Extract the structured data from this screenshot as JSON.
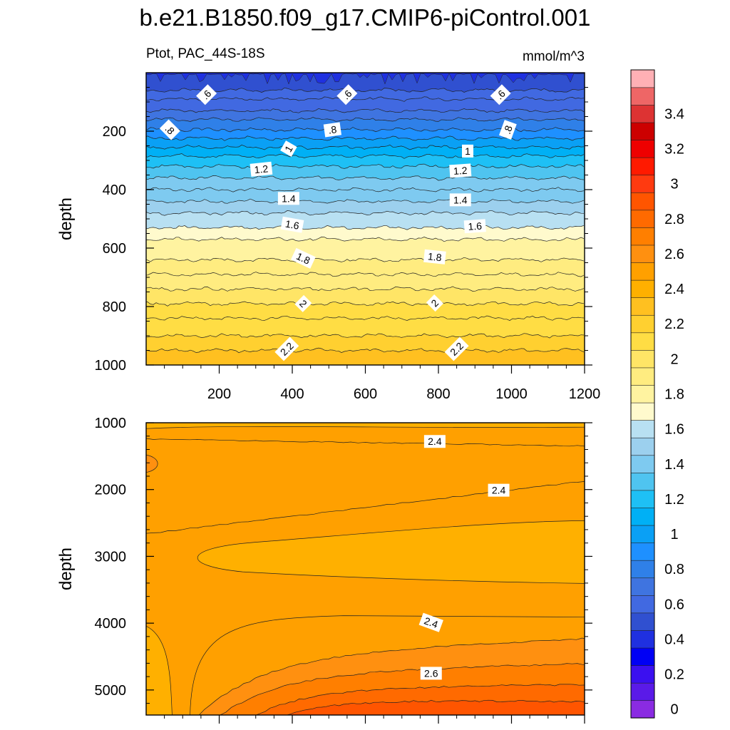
{
  "chart_data": {
    "type": "contour",
    "title": "b.e21.B1850.f09_g17.CMIP6-piControl.001",
    "left_string": "Ptot, PAC_44S-18S",
    "right_string": "mmol/m^3",
    "x_ticks": [
      200,
      400,
      600,
      800,
      1000,
      1200
    ],
    "colorbar": {
      "levels": [
        0,
        0.1,
        0.2,
        0.3,
        0.4,
        0.5,
        0.6,
        0.7,
        0.8,
        0.9,
        1.0,
        1.1,
        1.2,
        1.3,
        1.4,
        1.5,
        1.6,
        1.7,
        1.8,
        1.9,
        2.0,
        2.1,
        2.2,
        2.3,
        2.4,
        2.5,
        2.6,
        2.7,
        2.8,
        2.9,
        3.0,
        3.1,
        3.2,
        3.3,
        3.4,
        3.5
      ],
      "tick_labels": [
        "0",
        "0.2",
        "0.4",
        "0.6",
        "0.8",
        "1",
        "1.2",
        "1.4",
        "1.6",
        "1.8",
        "2",
        "2.2",
        "2.4",
        "2.6",
        "2.8",
        "3",
        "3.2",
        "3.4"
      ],
      "colors": [
        "#8a2be2",
        "#5a1ae8",
        "#3b10f0",
        "#0000f5",
        "#1f30e0",
        "#3050d0",
        "#4169e1",
        "#3f74e0",
        "#2f80e8",
        "#1e90ff",
        "#0aa0f5",
        "#00b0f5",
        "#1ec0f5",
        "#4fc4f0",
        "#7ecaf0",
        "#9cd0ee",
        "#b8e0f2",
        "#fffacd",
        "#fff3a0",
        "#ffec80",
        "#ffe566",
        "#ffdd44",
        "#ffd030",
        "#ffc020",
        "#ffb000",
        "#ffa000",
        "#ff9010",
        "#ff7f00",
        "#ff6a00",
        "#ff5500",
        "#ff3a10",
        "#ff1a00",
        "#ee0000",
        "#cc0000",
        "#dd3333",
        "#ee6666",
        "#ffb0b5"
      ]
    },
    "panels": [
      {
        "name": "upper",
        "ylabel": "depth",
        "y_ticks": [
          200,
          400,
          600,
          800,
          1000
        ],
        "y_range": [
          0,
          1000
        ],
        "x_range": [
          0,
          1200
        ],
        "show_x_tick_labels": true,
        "contour_levels": [
          {
            "depth": 60,
            "value": 0.5
          },
          {
            "depth": 90,
            "value": 0.55
          },
          {
            "depth": 130,
            "value": 0.6
          },
          {
            "depth": 160,
            "value": 0.7
          },
          {
            "depth": 195,
            "value": 0.8
          },
          {
            "depth": 225,
            "value": 0.9
          },
          {
            "depth": 255,
            "value": 1.0
          },
          {
            "depth": 285,
            "value": 1.1
          },
          {
            "depth": 320,
            "value": 1.2
          },
          {
            "depth": 360,
            "value": 1.3
          },
          {
            "depth": 400,
            "value": 1.35
          },
          {
            "depth": 440,
            "value": 1.4
          },
          {
            "depth": 480,
            "value": 1.5
          },
          {
            "depth": 530,
            "value": 1.6
          },
          {
            "depth": 570,
            "value": 1.7
          },
          {
            "depth": 640,
            "value": 1.8
          },
          {
            "depth": 690,
            "value": 1.85
          },
          {
            "depth": 740,
            "value": 1.9
          },
          {
            "depth": 790,
            "value": 2.0
          },
          {
            "depth": 840,
            "value": 2.05
          },
          {
            "depth": 900,
            "value": 2.1
          },
          {
            "depth": 950,
            "value": 2.2
          }
        ],
        "contour_labels": [
          {
            "text": ".6",
            "x": 165,
            "depth": 75,
            "angle": -45
          },
          {
            "text": ".6",
            "x": 550,
            "depth": 75,
            "angle": -45
          },
          {
            "text": ".6",
            "x": 970,
            "depth": 75,
            "angle": -45
          },
          {
            "text": ".8",
            "x": 65,
            "depth": 195,
            "angle": 45
          },
          {
            "text": ".8",
            "x": 510,
            "depth": 195,
            "angle": -8
          },
          {
            "text": ".8",
            "x": 990,
            "depth": 195,
            "angle": -70
          },
          {
            "text": "1",
            "x": 390,
            "depth": 260,
            "angle": -60
          },
          {
            "text": "1",
            "x": 880,
            "depth": 268,
            "angle": 0
          },
          {
            "text": "1.2",
            "x": 315,
            "depth": 330,
            "angle": -6
          },
          {
            "text": "1.2",
            "x": 860,
            "depth": 335,
            "angle": -4
          },
          {
            "text": "1.4",
            "x": 390,
            "depth": 430,
            "angle": 0
          },
          {
            "text": "1.4",
            "x": 860,
            "depth": 435,
            "angle": 0
          },
          {
            "text": "1.6",
            "x": 400,
            "depth": 520,
            "angle": 10
          },
          {
            "text": "1.6",
            "x": 900,
            "depth": 525,
            "angle": -4
          },
          {
            "text": "1.8",
            "x": 430,
            "depth": 635,
            "angle": 25
          },
          {
            "text": "1.8",
            "x": 790,
            "depth": 630,
            "angle": 6
          },
          {
            "text": "2",
            "x": 430,
            "depth": 790,
            "angle": 45
          },
          {
            "text": "2",
            "x": 790,
            "depth": 788,
            "angle": -45
          },
          {
            "text": "2.2",
            "x": 385,
            "depth": 945,
            "angle": -45
          },
          {
            "text": "2.2",
            "x": 850,
            "depth": 945,
            "angle": -45
          }
        ]
      },
      {
        "name": "lower",
        "ylabel": "depth",
        "y_ticks": [
          1000,
          2000,
          3000,
          4000,
          5000
        ],
        "y_range": [
          1000,
          5375
        ],
        "x_range": [
          0,
          1200
        ],
        "show_x_tick_labels": false,
        "contour_labels": [
          {
            "text": "2.4",
            "x": 790,
            "depth": 1280,
            "angle": 0
          },
          {
            "text": "2.4",
            "x": 965,
            "depth": 2010,
            "angle": 0
          },
          {
            "text": "2.4",
            "x": 780,
            "depth": 3990,
            "angle": 20
          },
          {
            "text": "2.6",
            "x": 780,
            "depth": 4750,
            "angle": 0
          }
        ]
      }
    ]
  }
}
